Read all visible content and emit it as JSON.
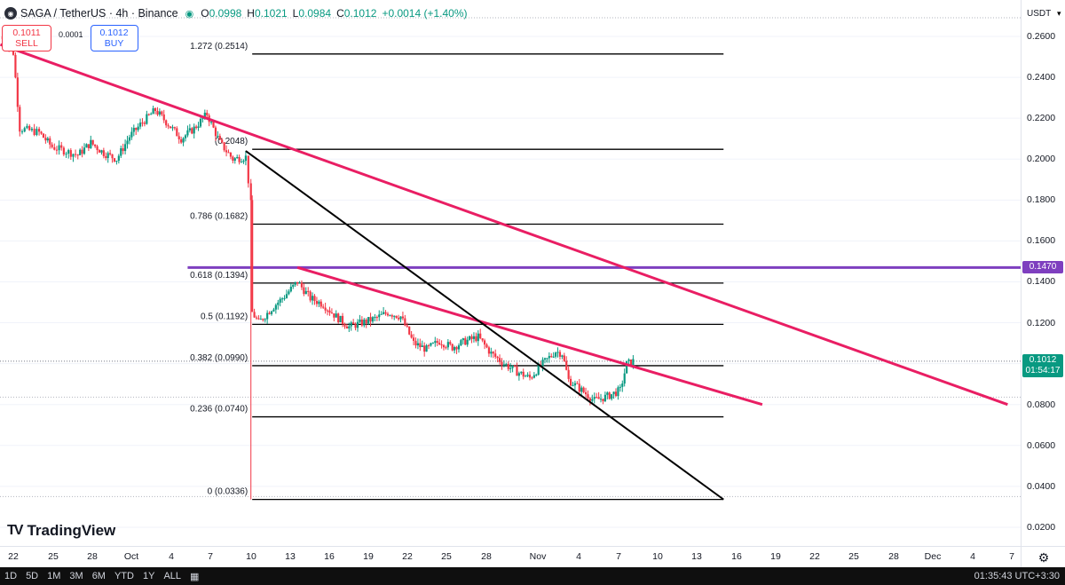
{
  "header": {
    "title": "SAGA / TetherUS · 4h · Binance",
    "open_label": "O",
    "open": "0.0998",
    "high_label": "H",
    "high": "0.1021",
    "low_label": "L",
    "low": "0.0984",
    "close_label": "C",
    "close": "0.1012",
    "change": "+0.0014 (+1.40%)"
  },
  "trade": {
    "sell_price": "0.1011",
    "sell_label": "SELL",
    "spread": "0.0001",
    "buy_price": "0.1012",
    "buy_label": "BUY"
  },
  "price_axis": {
    "currency": "USDT",
    "ticks": [
      "0.2600",
      "0.2400",
      "0.2200",
      "0.2000",
      "0.1800",
      "0.1600",
      "0.1400",
      "0.1200",
      "0.1000",
      "0.0800",
      "0.0600",
      "0.0400",
      "0.0200"
    ],
    "level_tag": "0.1470",
    "current_price_tag": "0.1012",
    "countdown": "01:54:17"
  },
  "time_axis": {
    "ticks": [
      "22",
      "25",
      "28",
      "Oct",
      "4",
      "7",
      "10",
      "13",
      "16",
      "19",
      "22",
      "25",
      "28",
      "Nov",
      "4",
      "7",
      "10",
      "13",
      "16",
      "19",
      "22",
      "25",
      "28",
      "Dec",
      "4",
      "7"
    ]
  },
  "logo": {
    "text": "TradingView"
  },
  "bottom_bar": {
    "ranges": [
      "1D",
      "5D",
      "1M",
      "3M",
      "6M",
      "YTD",
      "1Y",
      "ALL"
    ],
    "clock": "01:35:43 UTC+3:30"
  },
  "colors": {
    "up": "#089981",
    "down": "#f23645",
    "trendline": "#e91e63",
    "horizontal_level": "#7e3fbf",
    "fib_line": "#000000",
    "blue_tag": "#2962ff"
  },
  "chart_data": {
    "type": "candlestick",
    "symbol": "SAGA / TetherUS",
    "interval": "4h",
    "y_axis": {
      "min": 0.02,
      "max": 0.26,
      "unit": "USDT"
    },
    "last_candle": {
      "open": 0.0998,
      "high": 0.1021,
      "low": 0.0984,
      "close": 0.1012
    },
    "price_path": [
      {
        "date": "Sep 21",
        "price": 0.26
      },
      {
        "date": "Sep 22",
        "price": 0.252
      },
      {
        "date": "Sep 22.5",
        "price": 0.215
      },
      {
        "date": "Sep 24",
        "price": 0.213
      },
      {
        "date": "Sep 25",
        "price": 0.206
      },
      {
        "date": "Sep 27",
        "price": 0.202
      },
      {
        "date": "Sep 28",
        "price": 0.208
      },
      {
        "date": "Sep 29",
        "price": 0.203
      },
      {
        "date": "Sep 30",
        "price": 0.2
      },
      {
        "date": "Oct 1",
        "price": 0.211
      },
      {
        "date": "Oct 2",
        "price": 0.218
      },
      {
        "date": "Oct 3",
        "price": 0.224
      },
      {
        "date": "Oct 4",
        "price": 0.217
      },
      {
        "date": "Oct 5",
        "price": 0.21
      },
      {
        "date": "Oct 6",
        "price": 0.215
      },
      {
        "date": "Oct 7",
        "price": 0.222
      },
      {
        "date": "Oct 8",
        "price": 0.208
      },
      {
        "date": "Oct 9",
        "price": 0.2
      },
      {
        "date": "Oct 10",
        "price": 0.201
      },
      {
        "date": "Oct 10.4",
        "price": 0.178
      },
      {
        "date": "Oct 10.5",
        "price": 0.125
      },
      {
        "date": "Oct 11",
        "price": 0.12
      },
      {
        "date": "Oct 12",
        "price": 0.127
      },
      {
        "date": "Oct 13",
        "price": 0.133
      },
      {
        "date": "Oct 14",
        "price": 0.14
      },
      {
        "date": "Oct 15",
        "price": 0.132
      },
      {
        "date": "Oct 16",
        "price": 0.129
      },
      {
        "date": "Oct 17",
        "price": 0.123
      },
      {
        "date": "Oct 18",
        "price": 0.118
      },
      {
        "date": "Oct 19",
        "price": 0.12
      },
      {
        "date": "Oct 20",
        "price": 0.122
      },
      {
        "date": "Oct 21",
        "price": 0.125
      },
      {
        "date": "Oct 22",
        "price": 0.123
      },
      {
        "date": "Oct 23",
        "price": 0.11
      },
      {
        "date": "Oct 24",
        "price": 0.107
      },
      {
        "date": "Oct 25",
        "price": 0.111
      },
      {
        "date": "Oct 26",
        "price": 0.108
      },
      {
        "date": "Oct 27",
        "price": 0.111
      },
      {
        "date": "Oct 28",
        "price": 0.113
      },
      {
        "date": "Oct 29",
        "price": 0.105
      },
      {
        "date": "Oct 30",
        "price": 0.1
      },
      {
        "date": "Oct 31",
        "price": 0.096
      },
      {
        "date": "Nov 1",
        "price": 0.093
      },
      {
        "date": "Nov 2",
        "price": 0.1
      },
      {
        "date": "Nov 3",
        "price": 0.106
      },
      {
        "date": "Nov 3.5",
        "price": 0.105
      },
      {
        "date": "Nov 4",
        "price": 0.092
      },
      {
        "date": "Nov 5",
        "price": 0.087
      },
      {
        "date": "Nov 6",
        "price": 0.082
      },
      {
        "date": "Nov 7",
        "price": 0.084
      },
      {
        "date": "Nov 8",
        "price": 0.087
      },
      {
        "date": "Nov 8.5",
        "price": 0.0998
      },
      {
        "date": "Nov 9",
        "price": 0.1012
      }
    ],
    "fib_levels": [
      {
        "label": "1.272 (0.2514)",
        "price": 0.2514
      },
      {
        "label": "(0.2048)",
        "price": 0.2048
      },
      {
        "label": "0.786 (0.1682)",
        "price": 0.1682
      },
      {
        "label": "0.618 (0.1394)",
        "price": 0.1394
      },
      {
        "label": "0.5 (0.1192)",
        "price": 0.1192
      },
      {
        "label": "0.382 (0.0990)",
        "price": 0.099
      },
      {
        "label": "0.236 (0.0740)",
        "price": 0.074
      },
      {
        "label": "0 (0.0336)",
        "price": 0.0336
      }
    ],
    "horizontal_level": 0.147,
    "trendlines": [
      {
        "color": "#e91e63",
        "from": {
          "date": "Sep 21",
          "price": 0.256
        },
        "to": {
          "date": "Dec 8",
          "price": 0.08
        }
      },
      {
        "color": "#e91e63",
        "from": {
          "date": "Oct 14",
          "price": 0.147
        },
        "to": {
          "date": "Nov 19",
          "price": 0.08
        }
      },
      {
        "color": "#000000",
        "from": {
          "date": "Oct 10",
          "price": 0.204
        },
        "to": {
          "date": "Nov 16",
          "price": 0.0336
        }
      }
    ]
  }
}
